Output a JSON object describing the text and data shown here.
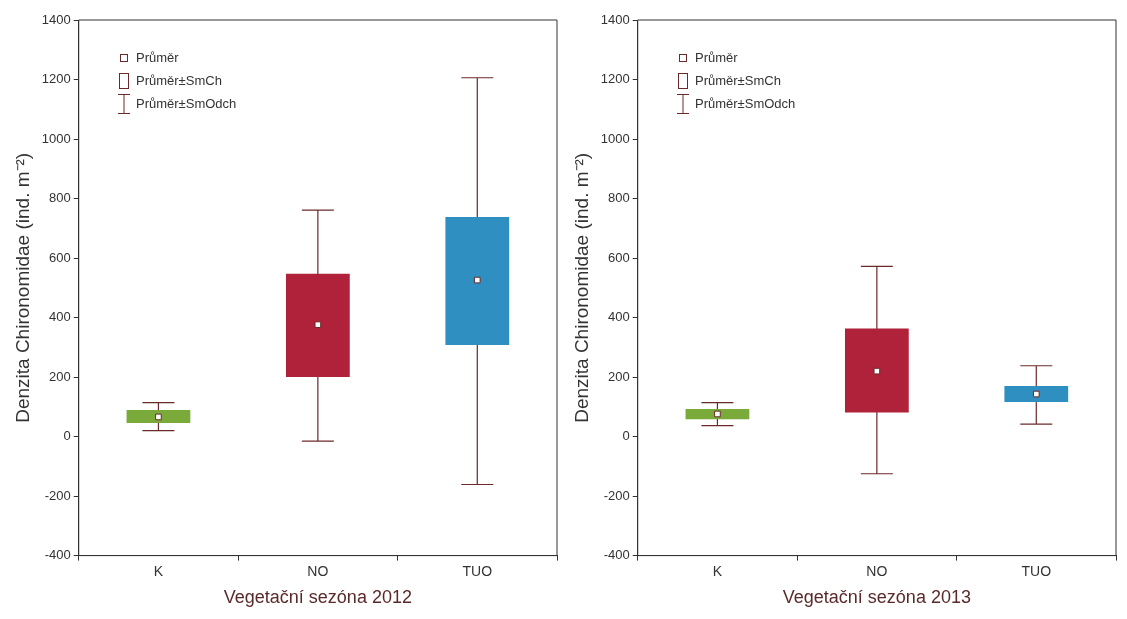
{
  "chart_data": [
    {
      "type": "box",
      "xlabel": "Vegetační sezóna 2012",
      "ylabel": "Denzita Chironomidae (ind. m⁻²)",
      "categories": [
        "K",
        "NO",
        "TUO"
      ],
      "ylim": [
        -400,
        1400
      ],
      "yticks": [
        -400,
        -200,
        0,
        200,
        400,
        600,
        800,
        1000,
        1200,
        1400
      ],
      "grid": false,
      "marker": "square",
      "annotations": [
        "Průměr",
        "Průměr±SmCh",
        "Průměr±SmOdch"
      ],
      "series": [
        {
          "colors": [
            "#7aab3a",
            "#b0223a",
            "#2e8fc0"
          ],
          "boxes": [
            {
              "low": 20,
              "q1": 46,
              "mean": 66,
              "q3": 89,
              "high": 114
            },
            {
              "low": -15,
              "q1": 200,
              "mean": 376,
              "q3": 547,
              "high": 761
            },
            {
              "low": -161,
              "q1": 308,
              "mean": 526,
              "q3": 738,
              "high": 1206
            }
          ]
        }
      ]
    },
    {
      "type": "box",
      "xlabel": "Vegetační sezóna 2013",
      "ylabel": "Denzita Chironomidae (ind. m⁻²)",
      "categories": [
        "K",
        "NO",
        "TUO"
      ],
      "ylim": [
        -400,
        1400
      ],
      "yticks": [
        -400,
        -200,
        0,
        200,
        400,
        600,
        800,
        1000,
        1200,
        1400
      ],
      "grid": false,
      "marker": "square",
      "annotations": [
        "Průměr",
        "Průměr±SmCh",
        "Průměr±SmOdch"
      ],
      "series": [
        {
          "colors": [
            "#7aab3a",
            "#b0223a",
            "#2e8fc0"
          ],
          "boxes": [
            {
              "low": 37,
              "q1": 58,
              "mean": 76,
              "q3": 93,
              "high": 114
            },
            {
              "low": -125,
              "q1": 81,
              "mean": 220,
              "q3": 363,
              "high": 572
            },
            {
              "low": 42,
              "q1": 116,
              "mean": 143,
              "q3": 170,
              "high": 238
            }
          ]
        }
      ]
    }
  ]
}
